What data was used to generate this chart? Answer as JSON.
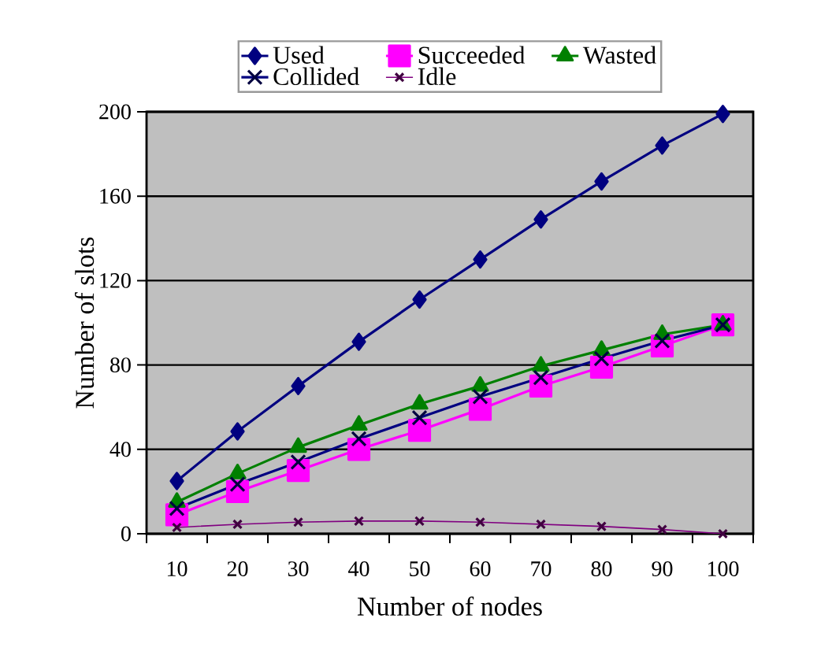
{
  "chart_data": {
    "type": "line",
    "xlabel": "Number of nodes",
    "ylabel": "Number of slots",
    "categories": [
      "10",
      "20",
      "30",
      "40",
      "50",
      "60",
      "70",
      "80",
      "90",
      "100"
    ],
    "series": [
      {
        "name": "Used",
        "color": "#000080",
        "marker": "diamond",
        "values": [
          25,
          48.5,
          70,
          91,
          111,
          130,
          149,
          167,
          184,
          199
        ]
      },
      {
        "name": "Succeeded",
        "color": "#ff00ff",
        "marker": "square",
        "values": [
          9,
          20,
          30,
          40,
          49,
          59,
          70,
          79,
          89,
          99
        ]
      },
      {
        "name": "Wasted",
        "color": "#008000",
        "marker": "triangle",
        "values": [
          15,
          28.5,
          41,
          51.5,
          61.5,
          70,
          79.5,
          87,
          94.5,
          99
        ]
      },
      {
        "name": "Collided",
        "color": "#000080",
        "marker": "cross",
        "values": [
          12,
          23.5,
          34,
          45,
          55,
          65,
          74,
          83,
          91.5,
          99
        ]
      },
      {
        "name": "Idle",
        "color": "#800080",
        "marker": "cross",
        "values": [
          3,
          4.5,
          5.5,
          6,
          6,
          5.5,
          4.5,
          3.5,
          2,
          0
        ]
      }
    ],
    "ylim": [
      0,
      200
    ],
    "yticks": [
      0,
      40,
      80,
      120,
      160,
      200
    ],
    "grid": "y",
    "legend": "top",
    "line_style": "solid"
  }
}
